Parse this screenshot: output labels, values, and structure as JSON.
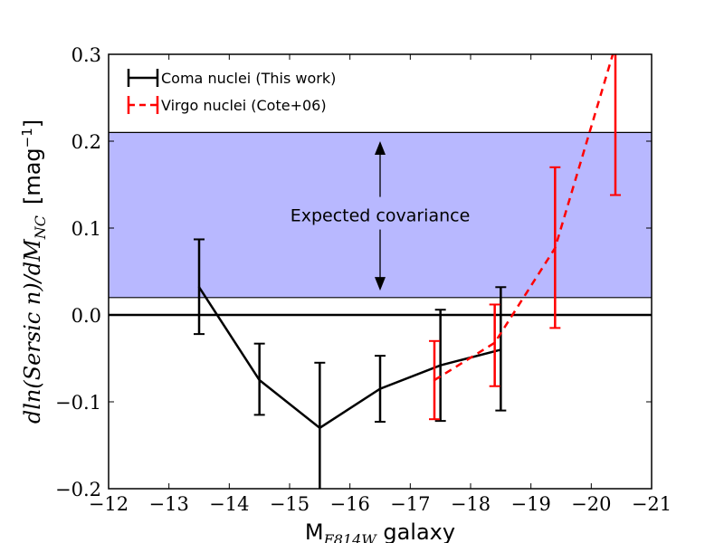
{
  "chart_data": {
    "type": "line",
    "title": "",
    "xlabel_main": "M",
    "xlabel_sub": "F814W",
    "xlabel_rest": " galaxy",
    "ylabel_math": "dln(Sersic n)/dM",
    "ylabel_sub": "NC",
    "ylabel_unit": "[mag",
    "ylabel_exp": "−1",
    "ylabel_close": "]",
    "xlim": [
      -12,
      -21
    ],
    "ylim": [
      -0.2,
      0.3
    ],
    "x_ticks": [
      -12,
      -13,
      -14,
      -15,
      -16,
      -17,
      -18,
      -19,
      -20,
      -21
    ],
    "x_tick_labels": [
      "−12",
      "−13",
      "−14",
      "−15",
      "−16",
      "−17",
      "−18",
      "−19",
      "−20",
      "−21"
    ],
    "y_ticks": [
      -0.2,
      -0.1,
      0.0,
      0.1,
      0.2,
      0.3
    ],
    "y_tick_labels": [
      "−0.2",
      "−0.1",
      "0.0",
      "0.1",
      "0.2",
      "0.3"
    ],
    "band": {
      "ymin": 0.02,
      "ymax": 0.21,
      "color": "#b8b8ff"
    },
    "zero_line": 0.0,
    "annotation": {
      "text": "Expected covariance",
      "x": -16.5,
      "y_text": 0.115,
      "arrow_top": 0.2,
      "arrow_bottom": 0.028
    },
    "series": [
      {
        "name": "Coma nuclei (This work)",
        "color": "#000000",
        "dashed": false,
        "x": [
          -13.5,
          -14.5,
          -15.5,
          -16.5,
          -17.5,
          -18.5
        ],
        "y": [
          0.032,
          -0.075,
          -0.13,
          -0.085,
          -0.058,
          -0.04
        ],
        "yerr_low": [
          -0.022,
          -0.115,
          -0.205,
          -0.123,
          -0.122,
          -0.11
        ],
        "yerr_high": [
          0.087,
          -0.033,
          -0.055,
          -0.047,
          0.006,
          0.032
        ]
      },
      {
        "name": "Virgo nuclei (Cote+06)",
        "color": "#ff0000",
        "dashed": true,
        "x": [
          -17.4,
          -18.4,
          -19.4,
          -20.4
        ],
        "y": [
          -0.075,
          -0.032,
          0.077,
          0.31
        ],
        "yerr_low": [
          -0.12,
          -0.082,
          -0.015,
          0.138
        ],
        "yerr_high": [
          -0.03,
          0.012,
          0.17,
          0.31
        ]
      }
    ],
    "legend_position": "top-left"
  }
}
